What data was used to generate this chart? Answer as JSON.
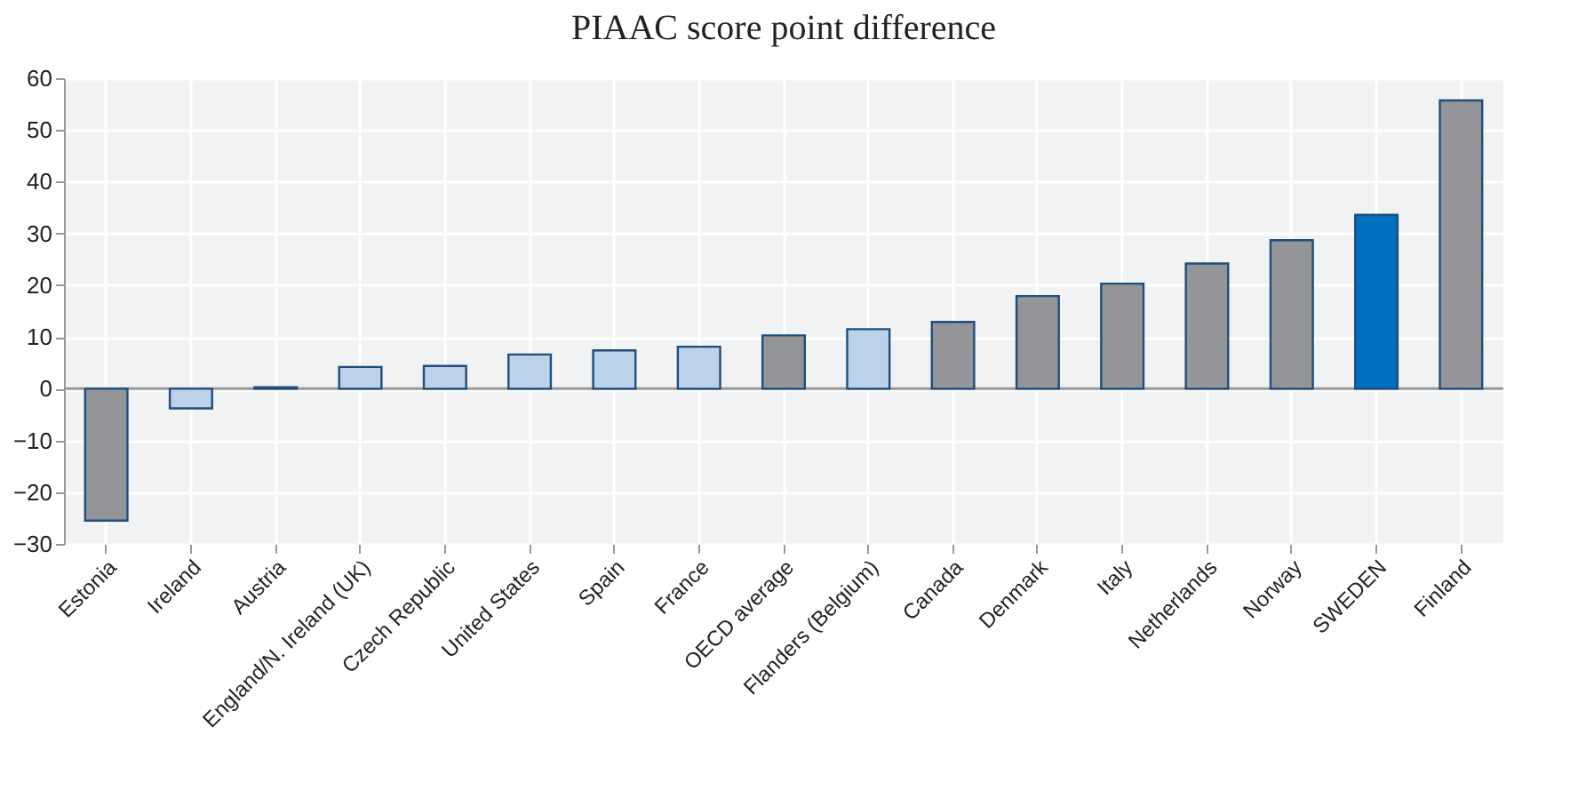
{
  "chart_data": {
    "type": "bar",
    "title": "PIAAC score point difference",
    "categories": [
      "Estonia",
      "Ireland",
      "Austria",
      "England/N. Ireland (UK)",
      "Czech Republic",
      "United States",
      "Spain",
      "France",
      "OECD average",
      "Flanders (Belgium)",
      "Canada",
      "Denmark",
      "Italy",
      "Netherlands",
      "Norway",
      "SWEDEN",
      "Finland"
    ],
    "values": [
      -25.5,
      -3.8,
      0.3,
      4.2,
      4.4,
      6.6,
      7.4,
      8.1,
      10.3,
      11.5,
      12.9,
      17.9,
      20.3,
      24.2,
      28.7,
      33.6,
      55.7
    ],
    "colors": [
      "#939598",
      "#bcd2ea",
      "#939598",
      "#bcd2ea",
      "#bcd2ea",
      "#bcd2ea",
      "#bcd2ea",
      "#bcd2ea",
      "#939598",
      "#bcd2ea",
      "#939598",
      "#939598",
      "#939598",
      "#939598",
      "#939598",
      "#0070c0",
      "#939598"
    ],
    "ylim": [
      -30,
      60
    ],
    "yticks": [
      -30,
      -20,
      -10,
      0,
      10,
      20,
      30,
      40,
      50,
      60
    ],
    "grid": true
  }
}
